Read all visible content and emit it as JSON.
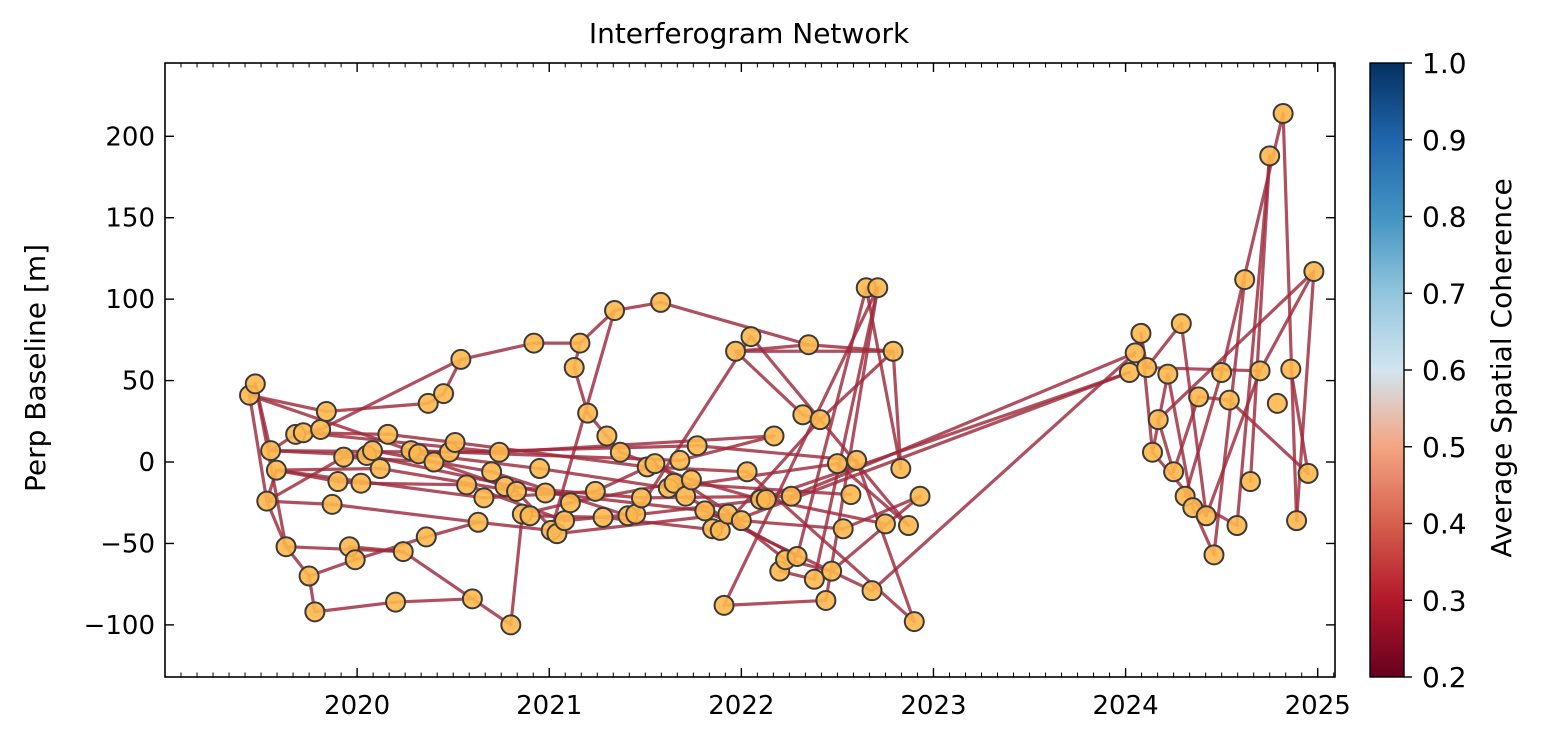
{
  "chart_data": {
    "type": "network",
    "title": "Interferogram Network",
    "ylabel": "Perp Baseline [m]",
    "xlabel": "",
    "x_unit": "year",
    "xlim": [
      2019.0,
      2025.09
    ],
    "ylim": [
      -132,
      245
    ],
    "x_ticks": [
      2020,
      2021,
      2022,
      2023,
      2024,
      2025
    ],
    "y_ticks": [
      -100,
      -50,
      0,
      50,
      100,
      150,
      200
    ],
    "y_tick_labels": [
      "−100",
      "−50",
      "0",
      "50",
      "100",
      "150",
      "200"
    ],
    "colorbar": {
      "label": "Average Spatial Coherence",
      "range": [
        0.2,
        1.0
      ],
      "ticks": [
        0.2,
        0.3,
        0.4,
        0.5,
        0.6,
        0.7,
        0.8,
        0.9,
        1.0
      ],
      "tick_labels": [
        "0.2",
        "0.3",
        "0.4",
        "0.5",
        "0.6",
        "0.7",
        "0.8",
        "0.9",
        "1.0"
      ],
      "colormap": "RdBu",
      "colors": [
        "#67001f",
        "#b2182b",
        "#d6604d",
        "#f4a582",
        "#d1e5f0",
        "#92c5de",
        "#4393c3",
        "#2166ac",
        "#053061"
      ],
      "highlight_range": [
        0.2,
        0.7
      ]
    },
    "node_color": "#ffb84d",
    "node_edge_color": "#3a3a3a",
    "edge_color": "#9e2a3c",
    "nodes": [
      [
        2019.44,
        41
      ],
      [
        2019.47,
        48
      ],
      [
        2019.53,
        -24
      ],
      [
        2019.55,
        7
      ],
      [
        2019.58,
        -5
      ],
      [
        2019.63,
        -52
      ],
      [
        2019.68,
        17
      ],
      [
        2019.72,
        18
      ],
      [
        2019.75,
        -70
      ],
      [
        2019.78,
        -92
      ],
      [
        2019.81,
        20
      ],
      [
        2019.84,
        31
      ],
      [
        2019.87,
        -26
      ],
      [
        2019.9,
        -12
      ],
      [
        2019.93,
        3
      ],
      [
        2019.96,
        -52
      ],
      [
        2019.99,
        -60
      ],
      [
        2020.02,
        -13
      ],
      [
        2020.05,
        4
      ],
      [
        2020.08,
        7
      ],
      [
        2020.12,
        -4
      ],
      [
        2020.16,
        17
      ],
      [
        2020.2,
        -86
      ],
      [
        2020.24,
        -55
      ],
      [
        2020.28,
        7
      ],
      [
        2020.32,
        5
      ],
      [
        2020.36,
        -46
      ],
      [
        2020.37,
        36
      ],
      [
        2020.4,
        0
      ],
      [
        2020.45,
        42
      ],
      [
        2020.48,
        6
      ],
      [
        2020.51,
        12
      ],
      [
        2020.54,
        63
      ],
      [
        2020.57,
        -14
      ],
      [
        2020.6,
        -84
      ],
      [
        2020.63,
        -37
      ],
      [
        2020.66,
        -22
      ],
      [
        2020.7,
        -6
      ],
      [
        2020.74,
        6
      ],
      [
        2020.77,
        -15
      ],
      [
        2020.8,
        -100
      ],
      [
        2020.83,
        -18
      ],
      [
        2020.86,
        -32
      ],
      [
        2020.9,
        -33
      ],
      [
        2020.92,
        73
      ],
      [
        2020.95,
        -4
      ],
      [
        2020.98,
        -19
      ],
      [
        2021.01,
        -42
      ],
      [
        2021.04,
        -44
      ],
      [
        2021.08,
        -36
      ],
      [
        2021.11,
        -25
      ],
      [
        2021.13,
        58
      ],
      [
        2021.16,
        73
      ],
      [
        2021.2,
        30
      ],
      [
        2021.24,
        -18
      ],
      [
        2021.28,
        -34
      ],
      [
        2021.3,
        16
      ],
      [
        2021.34,
        93
      ],
      [
        2021.37,
        6
      ],
      [
        2021.41,
        -33
      ],
      [
        2021.45,
        -32
      ],
      [
        2021.48,
        -22
      ],
      [
        2021.51,
        -3
      ],
      [
        2021.55,
        -1
      ],
      [
        2021.58,
        98
      ],
      [
        2021.62,
        -16
      ],
      [
        2021.65,
        -13
      ],
      [
        2021.68,
        1
      ],
      [
        2021.71,
        -21
      ],
      [
        2021.74,
        -11
      ],
      [
        2021.77,
        10
      ],
      [
        2021.81,
        -30
      ],
      [
        2021.85,
        -41
      ],
      [
        2021.89,
        -42
      ],
      [
        2021.91,
        -88
      ],
      [
        2021.93,
        -32
      ],
      [
        2021.97,
        68
      ],
      [
        2022.0,
        -36
      ],
      [
        2022.03,
        -6
      ],
      [
        2022.05,
        77
      ],
      [
        2022.1,
        -23
      ],
      [
        2022.13,
        -23
      ],
      [
        2022.17,
        16
      ],
      [
        2022.2,
        -67
      ],
      [
        2022.23,
        -60
      ],
      [
        2022.26,
        -21
      ],
      [
        2022.29,
        -58
      ],
      [
        2022.32,
        29
      ],
      [
        2022.35,
        72
      ],
      [
        2022.38,
        -72
      ],
      [
        2022.41,
        26
      ],
      [
        2022.44,
        -85
      ],
      [
        2022.47,
        -67
      ],
      [
        2022.5,
        -1
      ],
      [
        2022.53,
        -41
      ],
      [
        2022.57,
        -20
      ],
      [
        2022.6,
        1
      ],
      [
        2022.65,
        107
      ],
      [
        2022.68,
        -79
      ],
      [
        2022.71,
        107
      ],
      [
        2022.75,
        -38
      ],
      [
        2022.79,
        68
      ],
      [
        2022.83,
        -4
      ],
      [
        2022.87,
        -39
      ],
      [
        2022.9,
        -98
      ],
      [
        2022.93,
        -21
      ],
      [
        2024.02,
        55
      ],
      [
        2024.05,
        67
      ],
      [
        2024.08,
        79
      ],
      [
        2024.11,
        58
      ],
      [
        2024.14,
        6
      ],
      [
        2024.17,
        26
      ],
      [
        2024.22,
        54
      ],
      [
        2024.25,
        -6
      ],
      [
        2024.29,
        85
      ],
      [
        2024.31,
        -21
      ],
      [
        2024.35,
        -28
      ],
      [
        2024.38,
        40
      ],
      [
        2024.42,
        -33
      ],
      [
        2024.46,
        -57
      ],
      [
        2024.5,
        55
      ],
      [
        2024.54,
        38
      ],
      [
        2024.58,
        -39
      ],
      [
        2024.62,
        112
      ],
      [
        2024.65,
        -12
      ],
      [
        2024.7,
        56
      ],
      [
        2024.75,
        188
      ],
      [
        2024.79,
        36
      ],
      [
        2024.82,
        214
      ],
      [
        2024.86,
        57
      ],
      [
        2024.89,
        -36
      ],
      [
        2024.95,
        -7
      ],
      [
        2024.98,
        117
      ]
    ],
    "edges": [
      [
        0,
        1
      ],
      [
        0,
        2
      ],
      [
        0,
        11
      ],
      [
        0,
        24
      ],
      [
        1,
        3
      ],
      [
        1,
        5
      ],
      [
        2,
        4
      ],
      [
        2,
        5
      ],
      [
        2,
        12
      ],
      [
        2,
        14
      ],
      [
        3,
        6
      ],
      [
        3,
        18
      ],
      [
        3,
        30
      ],
      [
        4,
        13
      ],
      [
        4,
        20
      ],
      [
        4,
        36
      ],
      [
        5,
        8
      ],
      [
        5,
        23
      ],
      [
        6,
        10
      ],
      [
        7,
        21
      ],
      [
        7,
        38
      ],
      [
        8,
        9
      ],
      [
        8,
        16
      ],
      [
        9,
        22
      ],
      [
        10,
        32
      ],
      [
        11,
        27
      ],
      [
        12,
        35
      ],
      [
        13,
        17
      ],
      [
        14,
        28
      ],
      [
        15,
        16
      ],
      [
        15,
        23
      ],
      [
        16,
        26
      ],
      [
        17,
        33
      ],
      [
        18,
        46
      ],
      [
        19,
        37
      ],
      [
        20,
        41
      ],
      [
        21,
        31
      ],
      [
        22,
        34
      ],
      [
        23,
        34
      ],
      [
        24,
        67
      ],
      [
        25,
        45
      ],
      [
        26,
        35
      ],
      [
        27,
        29
      ],
      [
        28,
        39
      ],
      [
        29,
        32
      ],
      [
        30,
        70
      ],
      [
        31,
        62
      ],
      [
        32,
        44
      ],
      [
        33,
        49
      ],
      [
        34,
        40
      ],
      [
        35,
        47
      ],
      [
        36,
        54
      ],
      [
        37,
        59
      ],
      [
        38,
        82
      ],
      [
        39,
        61
      ],
      [
        40,
        42
      ],
      [
        41,
        48
      ],
      [
        42,
        50
      ],
      [
        43,
        55
      ],
      [
        44,
        52
      ],
      [
        45,
        65
      ],
      [
        46,
        71
      ],
      [
        47,
        57
      ],
      [
        48,
        75
      ],
      [
        49,
        60
      ],
      [
        50,
        66
      ],
      [
        51,
        52
      ],
      [
        51,
        53
      ],
      [
        52,
        57
      ],
      [
        53,
        56
      ],
      [
        54,
        63
      ],
      [
        55,
        73
      ],
      [
        56,
        58
      ],
      [
        57,
        64
      ],
      [
        58,
        69
      ],
      [
        59,
        81
      ],
      [
        60,
        79
      ],
      [
        61,
        85
      ],
      [
        62,
        78
      ],
      [
        63,
        77
      ],
      [
        64,
        88
      ],
      [
        65,
        93
      ],
      [
        66,
        95
      ],
      [
        67,
        82
      ],
      [
        68,
        86
      ],
      [
        69,
        80
      ],
      [
        70,
        96
      ],
      [
        71,
        98
      ],
      [
        72,
        106
      ],
      [
        73,
        90
      ],
      [
        74,
        91
      ],
      [
        74,
        99
      ],
      [
        75,
        84
      ],
      [
        76,
        88
      ],
      [
        76,
        101
      ],
      [
        76,
        87
      ],
      [
        77,
        94
      ],
      [
        78,
        104
      ],
      [
        79,
        103
      ],
      [
        80,
        106
      ],
      [
        81,
        100
      ],
      [
        83,
        89
      ],
      [
        84,
        92
      ],
      [
        85,
        107
      ],
      [
        86,
        97
      ],
      [
        87,
        90
      ],
      [
        88,
        101
      ],
      [
        89,
        99
      ],
      [
        90,
        101
      ],
      [
        91,
        99
      ],
      [
        92,
        105
      ],
      [
        93,
        103
      ],
      [
        94,
        105
      ],
      [
        96,
        104
      ],
      [
        97,
        102
      ],
      [
        98,
        107
      ],
      [
        101,
        102
      ],
      [
        108,
        109
      ],
      [
        108,
        110
      ],
      [
        109,
        114
      ],
      [
        109,
        125
      ],
      [
        110,
        112
      ],
      [
        110,
        118
      ],
      [
        111,
        113
      ],
      [
        111,
        132
      ],
      [
        112,
        116
      ],
      [
        113,
        117
      ],
      [
        114,
        118
      ],
      [
        115,
        120
      ],
      [
        115,
        122
      ],
      [
        116,
        119
      ],
      [
        117,
        121
      ],
      [
        118,
        125
      ],
      [
        119,
        123
      ],
      [
        120,
        128
      ],
      [
        121,
        131
      ],
      [
        122,
        126
      ],
      [
        124,
        126
      ],
      [
        125,
        132
      ],
      [
        126,
        133
      ],
      [
        127,
        135
      ],
      [
        128,
        130
      ],
      [
        129,
        133
      ],
      [
        129,
        131
      ],
      [
        130,
        132
      ],
      [
        130,
        134
      ],
      [
        131,
        134
      ],
      [
        132,
        134
      ],
      [
        133,
        136
      ],
      [
        134,
        135
      ],
      [
        135,
        136
      ]
    ]
  }
}
